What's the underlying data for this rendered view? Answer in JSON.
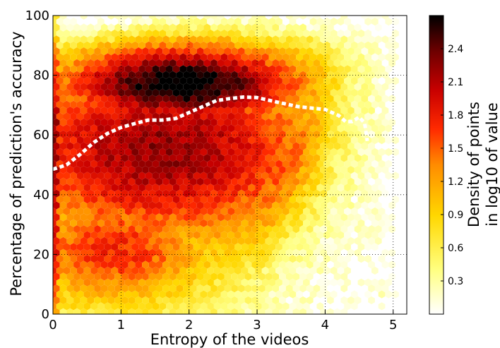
{
  "chart_data": {
    "type": "hexbin",
    "xlabel": "Entropy of the videos",
    "ylabel": "Percentage of prediction's accuracy",
    "xlim": [
      0,
      5.2
    ],
    "ylim": [
      0,
      100
    ],
    "x_ticks": [
      0,
      1,
      2,
      3,
      4,
      5
    ],
    "y_ticks": [
      0,
      20,
      40,
      60,
      80,
      100
    ],
    "grid": true,
    "grid_style": "dotted",
    "colormap": "hot_r",
    "colorbar": {
      "label_line1": "Density of points",
      "label_line2": "in log10 of value",
      "range": [
        0,
        2.7
      ],
      "ticks": [
        0.3,
        0.6,
        0.9,
        1.2,
        1.5,
        1.8,
        2.1,
        2.4
      ],
      "tick_labels": [
        "0.3",
        "0.6",
        "0.9",
        "1.2",
        "1.5",
        "1.8",
        "2.1",
        "2.4"
      ]
    },
    "density_peak": {
      "x": 1.9,
      "y": 78,
      "log10_density": 2.6
    },
    "median_curve": {
      "style": "white dotted",
      "points": [
        [
          0.0,
          48.5
        ],
        [
          0.2,
          50
        ],
        [
          0.4,
          53.5
        ],
        [
          0.6,
          57.5
        ],
        [
          0.8,
          60.5
        ],
        [
          1.0,
          62.5
        ],
        [
          1.2,
          63.8
        ],
        [
          1.4,
          65
        ],
        [
          1.6,
          65
        ],
        [
          1.8,
          65.5
        ],
        [
          2.0,
          67.5
        ],
        [
          2.2,
          69.5
        ],
        [
          2.4,
          71.5
        ],
        [
          2.6,
          72.2
        ],
        [
          2.8,
          72.7
        ],
        [
          3.0,
          72.5
        ],
        [
          3.2,
          71.5
        ],
        [
          3.4,
          70.5
        ],
        [
          3.6,
          69.5
        ],
        [
          3.8,
          69
        ],
        [
          4.0,
          68.5
        ],
        [
          4.2,
          66.5
        ],
        [
          4.3,
          64.5
        ],
        [
          4.4,
          64.5
        ],
        [
          4.5,
          66
        ],
        [
          4.58,
          64
        ],
        [
          4.62,
          58
        ]
      ]
    }
  }
}
